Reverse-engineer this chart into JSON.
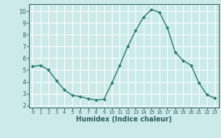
{
  "x": [
    0,
    1,
    2,
    3,
    4,
    5,
    6,
    7,
    8,
    9,
    10,
    11,
    12,
    13,
    14,
    15,
    16,
    17,
    18,
    19,
    20,
    21,
    22,
    23
  ],
  "y": [
    5.3,
    5.4,
    5.0,
    4.1,
    3.3,
    2.85,
    2.75,
    2.55,
    2.45,
    2.5,
    3.9,
    5.4,
    7.0,
    8.35,
    9.5,
    10.15,
    9.9,
    8.6,
    6.5,
    5.8,
    5.4,
    3.9,
    2.9,
    2.6
  ],
  "line_color": "#2e7d6e",
  "marker": "D",
  "marker_size": 2.2,
  "bg_color": "#cceaea",
  "grid_color": "#ffffff",
  "xlabel": "Humidex (Indice chaleur)",
  "ylim": [
    1.8,
    10.6
  ],
  "xlim": [
    -0.5,
    23.5
  ],
  "yticks": [
    2,
    3,
    4,
    5,
    6,
    7,
    8,
    9,
    10
  ],
  "xticks": [
    0,
    1,
    2,
    3,
    4,
    5,
    6,
    7,
    8,
    9,
    10,
    11,
    12,
    13,
    14,
    15,
    16,
    17,
    18,
    19,
    20,
    21,
    22,
    23
  ],
  "x_tick_fontsize": 5.0,
  "y_tick_fontsize": 6.0,
  "label_fontsize": 7.0,
  "line_width": 1.1,
  "spine_color": "#2e5f5f",
  "tick_color": "#2e5f5f",
  "label_color": "#2e5f5f"
}
